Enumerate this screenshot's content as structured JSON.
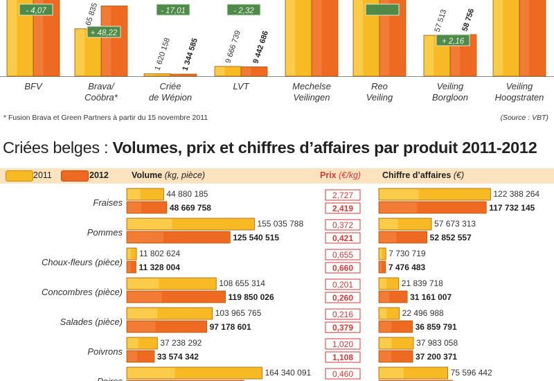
{
  "colors": {
    "y2011": "#f7ba25",
    "y2012": "#ee6a22",
    "y2011_top": "#ffd86a",
    "y2012_top": "#f58a46",
    "band": "#fbe3c0",
    "green": "#4f8a4a",
    "red": "#d43a3a"
  },
  "footnote": "* Fusion Brava et Green Partners à partir du 15 novembre 2011",
  "source": "(Source : VBT)",
  "title_light": "Criées belges : ",
  "title_bold": "Volumes, prix et chiffres d’affaires par produit 2011-2012",
  "legend": {
    "y2011": "2011",
    "y2012": "2012"
  },
  "headers": {
    "volume": "Volume",
    "volume_unit": "(kg, pièce)",
    "prix": "Prix",
    "prix_unit": "(€/kg)",
    "ca": "Chiffre d’affaires",
    "ca_unit": "(€)"
  },
  "chart_data": [
    {
      "type": "bar",
      "title": "",
      "categories": [
        "BFV",
        "Brava/ Coöbra*",
        "Criée de Wépion",
        "LVT",
        "Mechelse Veilingen",
        "Reo Veiling",
        "Veiling Borgloon",
        "Veiling Hoogstraten"
      ],
      "category_lines": [
        [
          "BFV"
        ],
        [
          "Brava/",
          "Coöbra*"
        ],
        [
          "Criée",
          "de Wépion"
        ],
        [
          "LVT"
        ],
        [
          "Mechelse",
          "Veilingen"
        ],
        [
          "Reo",
          "Veiling"
        ],
        [
          "Veiling",
          "Borgloon"
        ],
        [
          "Veiling",
          "Hoogstraten"
        ]
      ],
      "series": [
        {
          "name": "2011",
          "value_labels": [
            null,
            "65 835",
            "1 620 158",
            "9 666 739",
            null,
            null,
            "57 513",
            null
          ]
        },
        {
          "name": "2012",
          "value_labels": [
            null,
            null,
            "1 344 585",
            "9 442 686",
            null,
            null,
            "58 756",
            null
          ]
        }
      ],
      "relative_heights_2011": [
        1.0,
        0.58,
        0.03,
        0.12,
        1.0,
        1.0,
        0.5,
        1.0
      ],
      "relative_heights_2012": [
        1.0,
        0.86,
        0.026,
        0.115,
        1.0,
        1.0,
        0.51,
        1.0
      ],
      "changes": [
        "- 4,07",
        "+ 48,22",
        "- 17,01",
        "- 2,32",
        null,
        "",
        "+ 2,16",
        null
      ]
    },
    {
      "type": "bar",
      "title": "Criées belges : Volumes, prix et chiffres d’affaires par produit 2011-2012",
      "categories": [
        "Fraises",
        "Pommes",
        "Choux-fleurs (pièce)",
        "Concombres (pièce)",
        "Salades (pièce)",
        "Poivrons",
        "Poires"
      ],
      "volume": {
        "y2011": [
          44880185,
          155035788,
          11802624,
          108655314,
          103965765,
          37238292,
          164340091
        ],
        "y2012": [
          48669758,
          125540515,
          11328004,
          119850026,
          97178601,
          33574342,
          null
        ],
        "y2011_labels": [
          "44 880 185",
          "155 035 788",
          "11 802 624",
          "108 655 314",
          "103 965 765",
          "37 238 292",
          "164 340 091"
        ],
        "y2012_labels": [
          "48 669 758",
          "125 540 515",
          "11 328 004",
          "119 850 026",
          "97 178 601",
          "33 574 342",
          ""
        ]
      },
      "prix": {
        "y2011": [
          "2,727",
          "0,372",
          "0,655",
          "0,201",
          "0,216",
          "1,020",
          "0,460"
        ],
        "y2012": [
          "2,419",
          "0,421",
          "0,660",
          "0,260",
          "0,379",
          "1,108",
          ""
        ]
      },
      "chiffre_affaires": {
        "y2011": [
          122388264,
          57673313,
          7730719,
          21839718,
          22496988,
          37983058,
          75596442
        ],
        "y2012": [
          117732145,
          52852557,
          7476483,
          31161007,
          36859791,
          37200371,
          null
        ],
        "y2011_labels": [
          "122 388 264",
          "57 673 313",
          "7 730 719",
          "21 839 718",
          "22 496 988",
          "37 983 058",
          "75 596 442"
        ],
        "y2012_labels": [
          "117 732 145",
          "52 852 557",
          "7 476 483",
          "31 161 007",
          "36 859 791",
          "37 200 371",
          ""
        ]
      }
    }
  ]
}
